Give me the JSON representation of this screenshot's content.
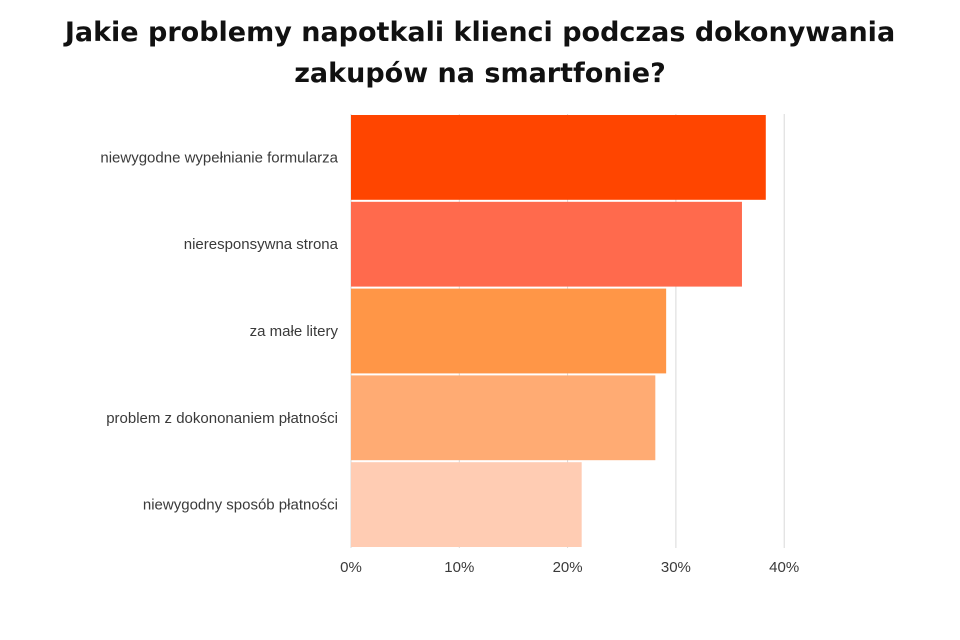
{
  "title": {
    "line1": "Jakie problemy napotkali klienci podczas dokonywania",
    "line2": "zakupów na smartfonie?"
  },
  "chart_data": {
    "type": "bar",
    "orientation": "horizontal",
    "title": "Jakie problemy napotkali klienci podczas dokonywania zakupów na smartfonie?",
    "xlabel": "",
    "ylabel": "",
    "categories": [
      "niewygodne wypełnianie formularza",
      "nieresponsywna strona",
      "za małe litery",
      "problem z dokononaniem płatności",
      "niewygodny sposób płatności"
    ],
    "values": [
      38.3,
      36.1,
      29.1,
      28.1,
      21.3
    ],
    "colors": [
      "#FF4500",
      "#FF6A4D",
      "#FF9647",
      "#FFAB73",
      "#FFCCB3"
    ],
    "xlim": [
      0,
      40
    ],
    "xticks": [
      0,
      10,
      20,
      30,
      40
    ],
    "xtick_labels": [
      "0%",
      "10%",
      "20%",
      "30%",
      "40%"
    ],
    "grid": true,
    "gridline_color": "#d9d9d9"
  }
}
